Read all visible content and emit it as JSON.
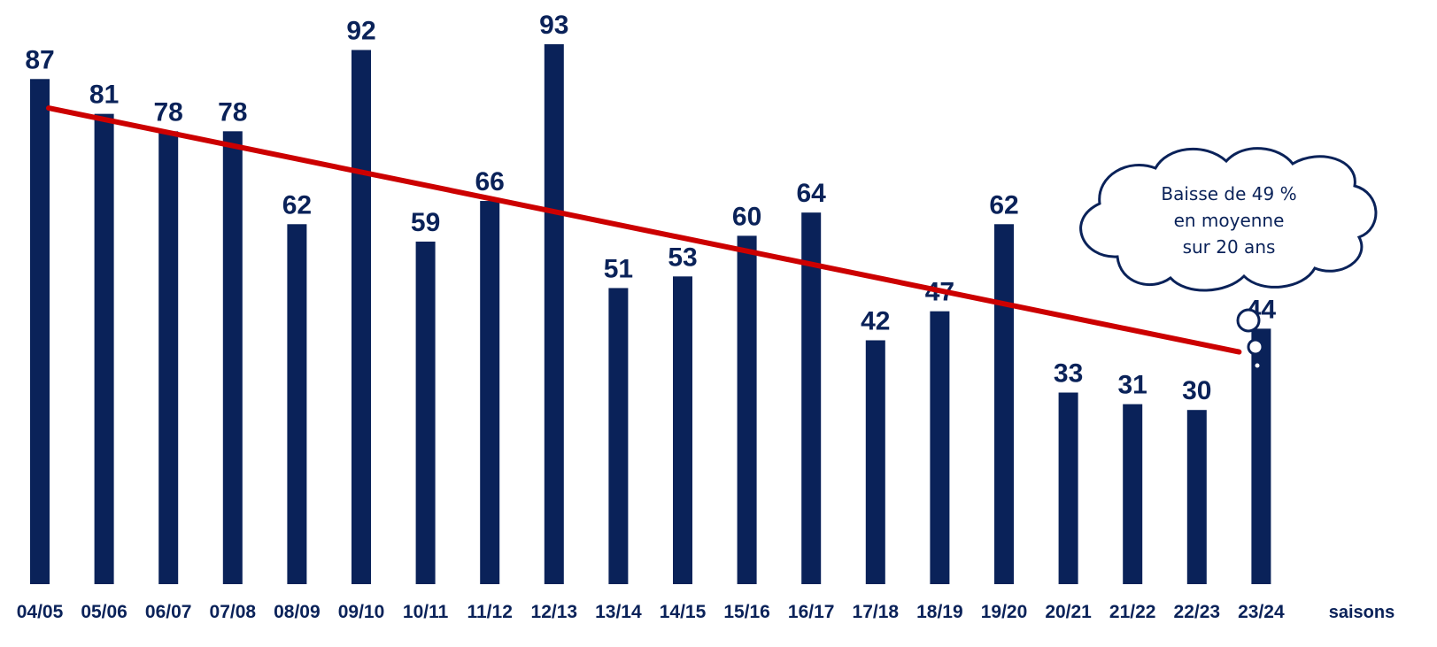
{
  "chart_data": {
    "type": "bar",
    "categories": [
      "04/05",
      "05/06",
      "06/07",
      "07/08",
      "08/09",
      "09/10",
      "10/11",
      "11/12",
      "12/13",
      "13/14",
      "14/15",
      "15/16",
      "16/17",
      "17/18",
      "18/19",
      "19/20",
      "20/21",
      "21/22",
      "22/23",
      "23/24"
    ],
    "values": [
      87,
      81,
      78,
      78,
      62,
      92,
      59,
      66,
      93,
      51,
      53,
      60,
      64,
      42,
      47,
      62,
      33,
      31,
      30,
      44
    ],
    "xlabel": "saisons",
    "ylabel": "",
    "ylim": [
      0,
      100
    ],
    "grid": false,
    "data_labels": true,
    "trendline": {
      "start_value": 82,
      "end_value": 40,
      "color": "#cc0000"
    },
    "annotation": {
      "shape": "thought-bubble",
      "lines": [
        "Baisse de 49 %",
        "en moyenne",
        "sur 20 ans"
      ]
    },
    "colors": {
      "bar": "#0a2259",
      "label": "#0a2259",
      "trend": "#cc0000",
      "cloud_stroke": "#0a2259"
    }
  }
}
